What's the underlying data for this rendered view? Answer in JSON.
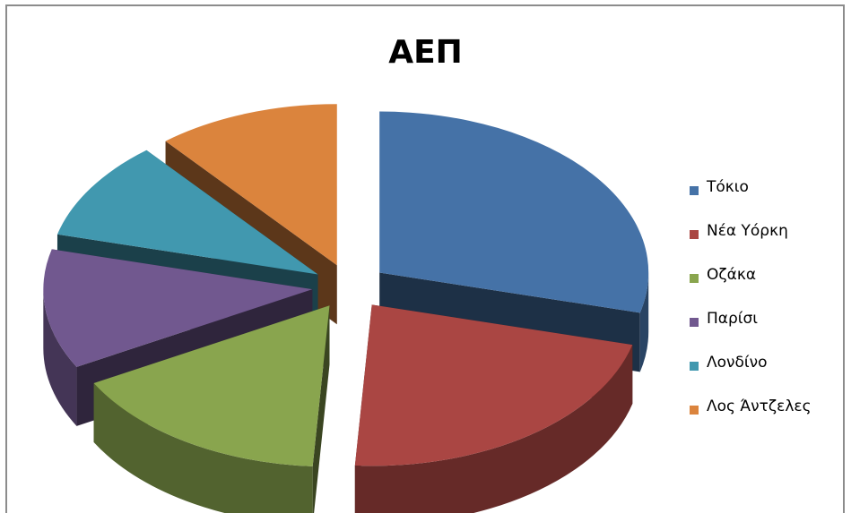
{
  "chart_data": {
    "type": "pie",
    "title": "ΑΕΠ",
    "exploded": true,
    "three_d": true,
    "legend_position": "right",
    "categories": [
      "Τόκιο",
      "Νέα Υόρκη",
      "Οζάκα",
      "Παρίσι",
      "Λονδίνο",
      "Λος Άντζελες"
    ],
    "values": [
      29,
      22,
      16,
      12,
      10,
      11
    ],
    "colors": [
      "#4572a7",
      "#aa4643",
      "#89a54e",
      "#71588f",
      "#4198af",
      "#db843d"
    ]
  }
}
